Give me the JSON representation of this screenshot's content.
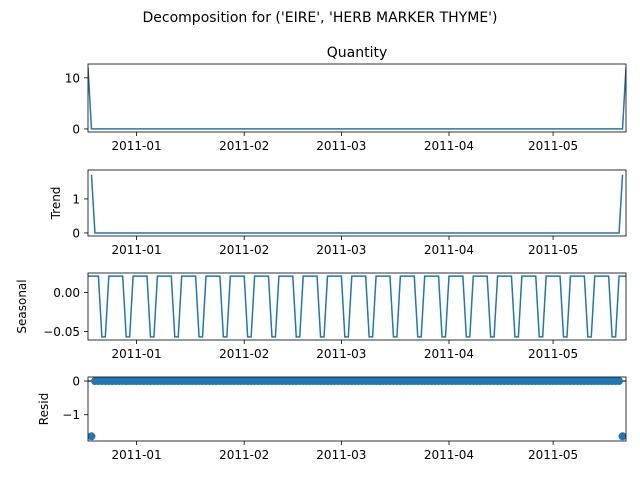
{
  "suptitle": "Decomposition for ('EIRE', 'HERB MARKER THYME')",
  "chart_data": [
    {
      "type": "line",
      "title": "Quantity",
      "ylabel": "",
      "x_dates": [
        "2010-12-19",
        "2011-05-20"
      ],
      "xlim": [
        "2010-12-18",
        "2011-05-22"
      ],
      "x_tick_labels": [
        "2011-01",
        "2011-02",
        "2011-03",
        "2011-04",
        "2011-05"
      ],
      "y_tick_labels": [
        "0",
        "10"
      ],
      "ylim": [
        -0.6,
        12.7
      ],
      "x": [
        "2010-12-18",
        "2010-12-19",
        "2011-05-21",
        "2011-05-22"
      ],
      "values": [
        12,
        0,
        0,
        12
      ]
    },
    {
      "type": "line",
      "title": "",
      "ylabel": "Trend",
      "xlim": [
        "2010-12-18",
        "2011-05-22"
      ],
      "x_tick_labels": [
        "2011-01",
        "2011-02",
        "2011-03",
        "2011-04",
        "2011-05"
      ],
      "y_tick_labels": [
        "0",
        "1"
      ],
      "ylim": [
        -0.09,
        1.85
      ],
      "x": [
        "2010-12-19",
        "2010-12-20",
        "2011-05-20",
        "2011-05-21"
      ],
      "values": [
        1.71,
        0,
        0,
        1.71
      ]
    },
    {
      "type": "line",
      "title": "",
      "ylabel": "Seasonal",
      "xlim": [
        "2010-12-18",
        "2011-05-22"
      ],
      "x_tick_labels": [
        "2011-01",
        "2011-02",
        "2011-03",
        "2011-04",
        "2011-05"
      ],
      "y_tick_labels": [
        "0.00",
        "−0.05"
      ],
      "ylim": [
        -0.061,
        0.025
      ],
      "period_days": 7,
      "pattern": [
        0.021,
        0.021,
        0.021,
        0.021,
        -0.057,
        -0.057,
        0.021
      ],
      "start": "2010-12-18",
      "end": "2011-05-22"
    },
    {
      "type": "scatter",
      "title": "",
      "ylabel": "Resid",
      "xlim": [
        "2010-12-18",
        "2011-05-22"
      ],
      "x_tick_labels": [
        "2011-01",
        "2011-02",
        "2011-03",
        "2011-04",
        "2011-05"
      ],
      "y_tick_labels": [
        "0",
        "−1"
      ],
      "ylim": [
        -1.78,
        0.12
      ],
      "baseline": 0,
      "start": "2010-12-19",
      "end": "2011-05-21",
      "outliers": [
        {
          "x": "2010-12-19",
          "y": -1.64
        },
        {
          "x": "2011-05-21",
          "y": -1.64
        }
      ],
      "default_y": 0
    }
  ],
  "colors": {
    "line": "#1f77b4",
    "axis": "#000000",
    "baseline": "#000000"
  }
}
